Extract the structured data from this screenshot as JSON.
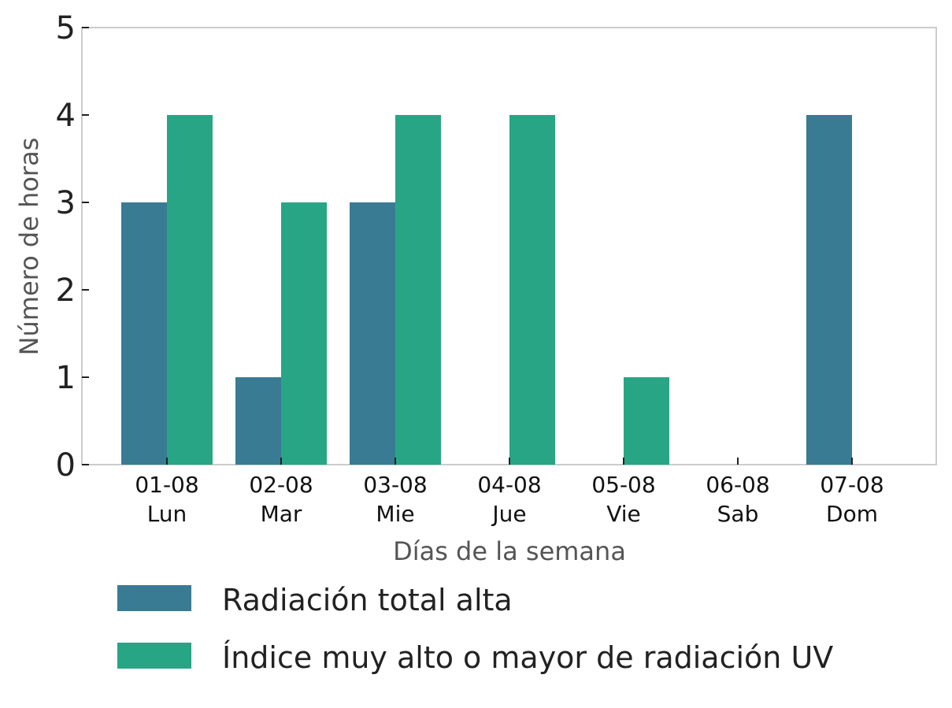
{
  "chart_data": {
    "type": "bar",
    "title": "",
    "xlabel": "Días de la semana",
    "ylabel": "Número de horas",
    "ylim": [
      0,
      5
    ],
    "yticks": [
      0,
      1,
      2,
      3,
      4,
      5
    ],
    "categories": [
      {
        "date": "01-08",
        "day": "Lun"
      },
      {
        "date": "02-08",
        "day": "Mar"
      },
      {
        "date": "03-08",
        "day": "Mie"
      },
      {
        "date": "04-08",
        "day": "Jue"
      },
      {
        "date": "05-08",
        "day": "Vie"
      },
      {
        "date": "06-08",
        "day": "Sab"
      },
      {
        "date": "07-08",
        "day": "Dom"
      }
    ],
    "series": [
      {
        "name": "Radiación total alta",
        "color": "#3a7b94",
        "values": [
          3,
          1,
          3,
          0,
          0,
          0,
          4
        ]
      },
      {
        "name": "Índice muy alto o mayor de radiación UV",
        "color": "#28a585",
        "values": [
          4,
          3,
          4,
          4,
          1,
          0,
          0
        ]
      }
    ],
    "grid": false,
    "legend_position": "bottom"
  }
}
